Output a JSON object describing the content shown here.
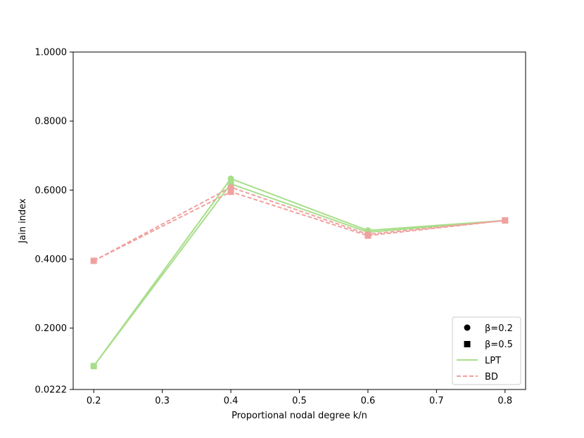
{
  "chart_data": {
    "type": "line",
    "xlabel": "Proportional nodal degree k/n",
    "ylabel": "Jain index",
    "x_ticks": [
      "0.2",
      "0.3",
      "0.4",
      "0.5",
      "0.6",
      "0.7",
      "0.8"
    ],
    "y_ticks": [
      "0.0222",
      "0.2000",
      "0.4000",
      "0.6000",
      "0.8000",
      "1.0000"
    ],
    "xlim": [
      0.17,
      0.83
    ],
    "ylim": [
      0.0222,
      1.0
    ],
    "grid": false,
    "legend_position": "lower-right",
    "legend": {
      "marker_circle_label": "β=0.2",
      "marker_square_label": "β=0.5",
      "line_lpt_label": "LPT",
      "line_bd_label": "BD"
    },
    "colors": {
      "LPT": "#a8de8a",
      "BD": "#f0a19e"
    },
    "x": [
      0.2,
      0.4,
      0.6,
      0.8
    ],
    "series": [
      {
        "method": "LPT",
        "beta": "β=0.2",
        "marker": "circle",
        "style": "solid",
        "values": [
          0.09,
          0.633,
          0.483,
          0.512
        ]
      },
      {
        "method": "LPT",
        "beta": "β=0.5",
        "marker": "square",
        "style": "solid",
        "values": [
          0.09,
          0.618,
          0.478,
          0.512
        ]
      },
      {
        "method": "BD",
        "beta": "β=0.2",
        "marker": "circle",
        "style": "dashed",
        "values": [
          0.395,
          0.608,
          0.472,
          0.512
        ]
      },
      {
        "method": "BD",
        "beta": "β=0.5",
        "marker": "square",
        "style": "dashed",
        "values": [
          0.395,
          0.595,
          0.468,
          0.512
        ]
      }
    ]
  }
}
